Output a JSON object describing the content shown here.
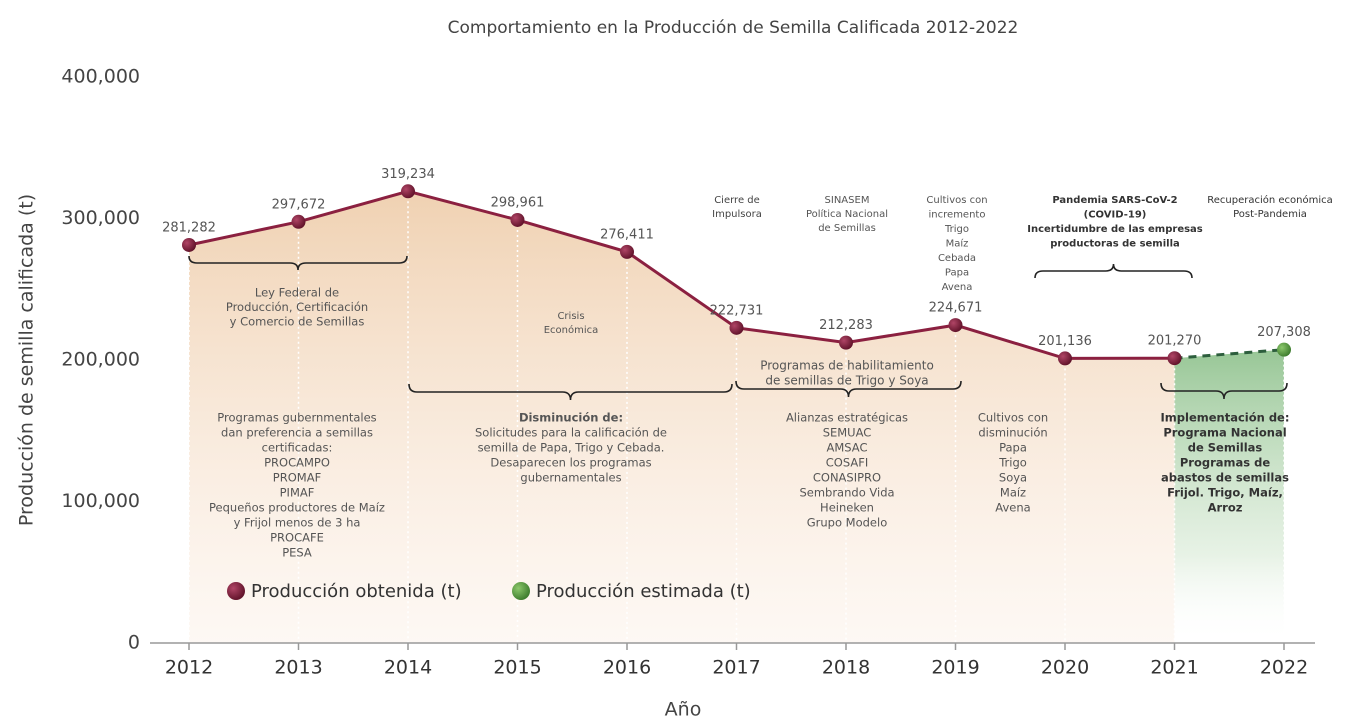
{
  "chart_data": {
    "type": "line",
    "title": "Comportamiento en la Producción de Semilla Calificada 2012-2022",
    "x_label": "Año",
    "y_label": "Producción de semilla calificada (t)",
    "categories": [
      "2012",
      "2013",
      "2014",
      "2015",
      "2016",
      "2017",
      "2018",
      "2019",
      "2020",
      "2021",
      "2022"
    ],
    "series": [
      {
        "name": "Producción obtenida (t)",
        "color": "#8b2040",
        "values": [
          281282,
          297672,
          319234,
          298961,
          276411,
          222731,
          212283,
          224671,
          201136,
          201270,
          null
        ],
        "value_labels": [
          "281,282",
          "297,672",
          "319,234",
          "298,961",
          "276,411",
          "222,731",
          "212,283",
          "224,671",
          "201,136",
          "201,270",
          null
        ]
      },
      {
        "name": "Producción estimada (t)",
        "color": "#4f8f3c",
        "values": [
          null,
          null,
          null,
          null,
          null,
          null,
          null,
          null,
          null,
          null,
          207308
        ],
        "value_labels": [
          null,
          null,
          null,
          null,
          null,
          null,
          null,
          null,
          null,
          null,
          "207,308"
        ]
      }
    ],
    "ylim": [
      0,
      400000
    ],
    "yticks": [
      0,
      {
        "value": 100000,
        "label": "100,000"
      },
      {
        "value": 200000,
        "label": "200,000"
      },
      {
        "value": 300000,
        "label": "300,000"
      },
      {
        "value": 400000,
        "label": "400,000"
      }
    ],
    "annotations": [
      {
        "lines": [
          "Cierre de",
          "Impulsora"
        ]
      },
      {
        "lines": [
          "SINASEM",
          "Política Nacional",
          "de Semillas"
        ]
      },
      {
        "lines": [
          "Cultivos con",
          "incremento",
          "Trigo",
          "Maíz",
          "Cebada",
          "Papa",
          "Avena"
        ]
      },
      {
        "lines": [
          "Pandemia SARS-CoV-2",
          "(COVID-19)",
          "Incertidumbre de las empresas",
          "productoras de semilla"
        ]
      },
      {
        "lines": [
          "Recuperación económica",
          "Post-Pandemia"
        ]
      },
      {
        "lines": [
          "Ley Federal de",
          "Producción, Certificación",
          "y Comercio de Semillas"
        ]
      },
      {
        "lines": [
          "Crisis",
          "Económica"
        ]
      },
      {
        "lines": [
          "Programas de habilitamiento",
          "de semillas de Trigo y Soya"
        ]
      },
      {
        "lines": [
          "Programas gubernmentales",
          "dan preferencia a semillas",
          "certificadas:",
          "PROCAMPO",
          "PROMAF",
          "PIMAF",
          "Pequeños productores de Maíz",
          "y Frijol menos de 3 ha",
          "PROCAFE",
          "PESA"
        ]
      },
      {
        "lines": [
          "Disminución de:",
          "Solicitudes para la calificación de",
          "semilla de Papa, Trigo y Cebada.",
          "Desaparecen los programas",
          "gubernamentales"
        ]
      },
      {
        "lines": [
          "Alianzas estratégicas",
          "SEMUAC",
          "AMSAC",
          "COSAFI",
          "CONASIPRO",
          "Sembrando Vida",
          "Heineken",
          "Grupo Modelo"
        ]
      },
      {
        "lines": [
          "Cultivos con",
          "disminución",
          "Papa",
          "Trigo",
          "Soya",
          "Maíz",
          "Avena"
        ]
      },
      {
        "lines": [
          "Implementación de:",
          "Programa Nacional",
          "de Semillas",
          "Programas de",
          "abastos de semillas",
          "Frijol. Trigo, Maíz,",
          "Arroz"
        ]
      }
    ]
  }
}
